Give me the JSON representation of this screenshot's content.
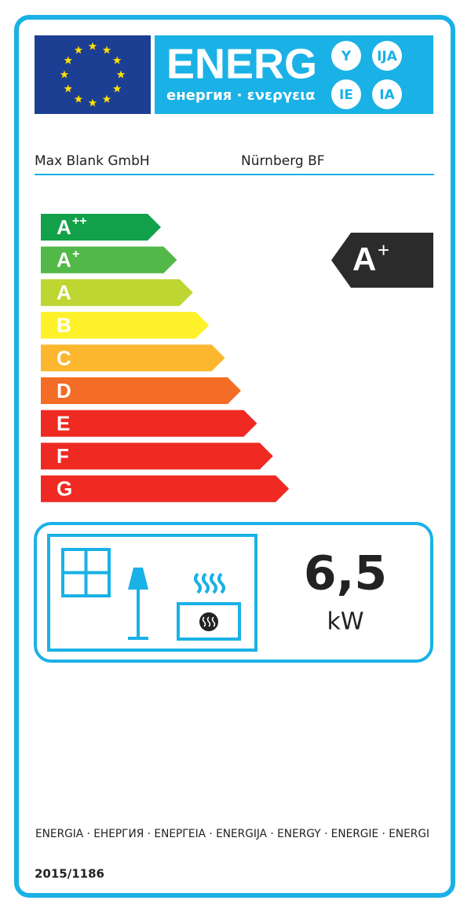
{
  "header": {
    "brand": "ENERG",
    "subtitle": "енергия · ενεργεια",
    "badges": [
      "Y",
      "IJA",
      "IE",
      "IA"
    ]
  },
  "supplier": "Max Blank GmbH",
  "model": "Nürnberg BF",
  "classes": [
    {
      "letter": "A",
      "sup": "++",
      "color": "#12a14a"
    },
    {
      "letter": "A",
      "sup": "+",
      "color": "#52b848"
    },
    {
      "letter": "A",
      "color": "#bdd631"
    },
    {
      "letter": "B",
      "color": "#fff12a"
    },
    {
      "letter": "C",
      "color": "#fcb72f"
    },
    {
      "letter": "D",
      "color": "#f36d26"
    },
    {
      "letter": "E",
      "color": "#ef2a23"
    },
    {
      "letter": "F",
      "color": "#ef2a23"
    },
    {
      "letter": "G",
      "color": "#ef2a23"
    }
  ],
  "rating": {
    "letter": "A",
    "sup": "+"
  },
  "output": {
    "value": "6,5",
    "unit": "kW"
  },
  "footer": {
    "languages": "ENERGIA · ЕНЕРГИЯ · ΕΝΕΡΓΕΙΑ · ENERGIJA · ENERGY · ENERGIE · ENERGI",
    "regulation": "2015/1186"
  }
}
